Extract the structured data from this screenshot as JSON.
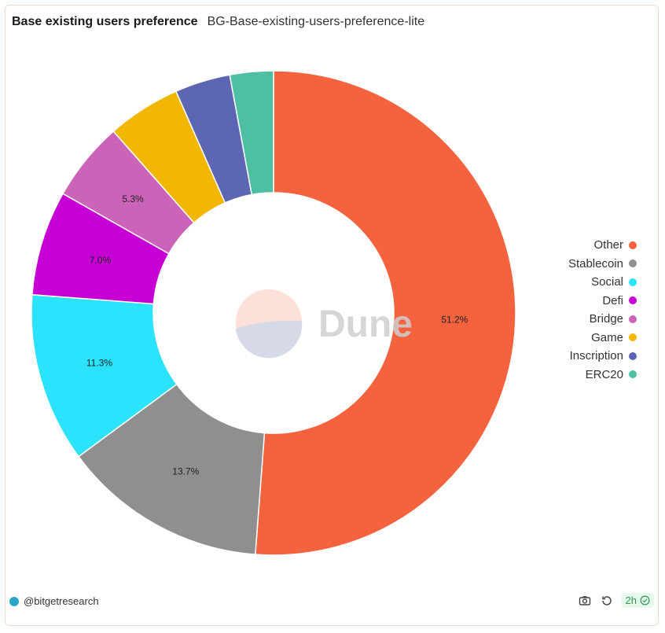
{
  "header": {
    "title": "Base existing users preference",
    "subtitle": "BG-Base-existing-users-preference-lite"
  },
  "watermark": {
    "text": "Dune"
  },
  "chart_data": {
    "type": "pie",
    "donut": true,
    "slices": [
      {
        "name": "Other",
        "value": 51.2,
        "label": "51.2%",
        "color": "#f4623e"
      },
      {
        "name": "Stablecoin",
        "value": 13.7,
        "label": "13.7%",
        "color": "#8f8f8f"
      },
      {
        "name": "Social",
        "value": 11.3,
        "label": "11.3%",
        "color": "#2be3fc"
      },
      {
        "name": "Defi",
        "value": 7.0,
        "label": "7.0%",
        "color": "#c600d4"
      },
      {
        "name": "Bridge",
        "value": 5.3,
        "label": "5.3%",
        "color": "#cb63b8"
      },
      {
        "name": "Game",
        "value": 4.9,
        "label": "",
        "color": "#f2b705"
      },
      {
        "name": "Inscription",
        "value": 3.7,
        "label": "",
        "color": "#5c66b2"
      },
      {
        "name": "ERC20",
        "value": 2.9,
        "label": "",
        "color": "#4fbfa4"
      }
    ],
    "legend_position": "right"
  },
  "footer": {
    "author": "@bitgetresearch",
    "refresh_age": "2h",
    "icons": [
      "camera-icon",
      "refresh-icon",
      "check-circle-icon"
    ]
  }
}
